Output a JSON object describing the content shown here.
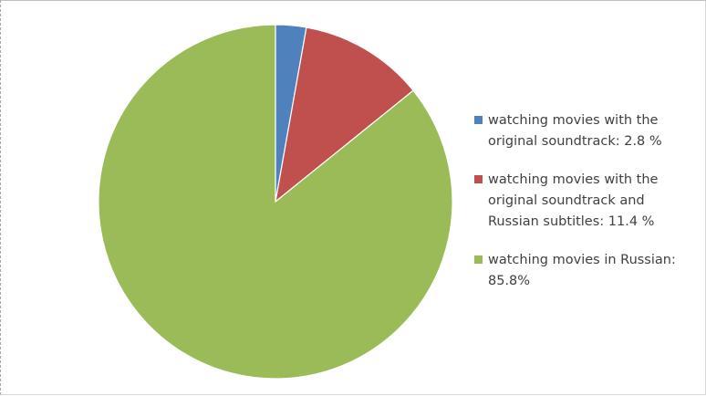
{
  "chart_data": {
    "type": "pie",
    "title": "",
    "slices": [
      {
        "label": "watching movies with the original soundtrack: 2.8 %",
        "value": 2.8,
        "color": "#4f81bd"
      },
      {
        "label": "watching movies with the original soundtrack and Russian subtitles: 11.4 %",
        "value": 11.4,
        "color": "#c0504d"
      },
      {
        "label": "watching movies in Russian: 85.8%",
        "value": 85.8,
        "color": "#9bbb59"
      }
    ],
    "legend_position": "right",
    "start_angle": "12 o'clock",
    "direction": "clockwise"
  }
}
